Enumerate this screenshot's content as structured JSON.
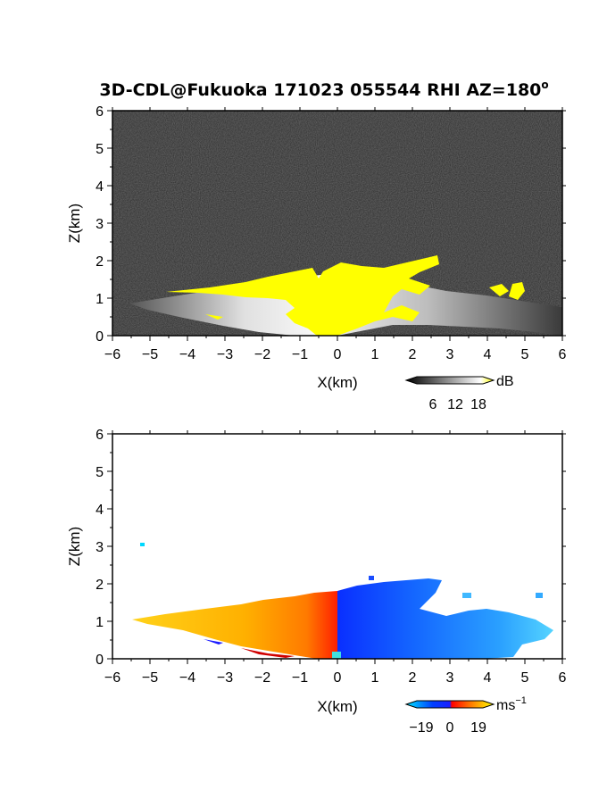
{
  "title": "3D-CDL@Fukuoka 171023 055544 RHI AZ=180",
  "title_superscript": "o",
  "chart_data": [
    {
      "type": "heatmap",
      "name": "signal-strength panel",
      "xlabel": "X(km)",
      "ylabel": "Z(km)",
      "xlim": [
        -6,
        6
      ],
      "ylim": [
        0,
        6
      ],
      "xticks": [
        "−6",
        "−5",
        "−4",
        "−3",
        "−2",
        "−1",
        "0",
        "1",
        "2",
        "3",
        "4",
        "5",
        "6"
      ],
      "yticks": [
        "0",
        "1",
        "2",
        "3",
        "4",
        "5",
        "6"
      ],
      "colorbar": {
        "unit": "dB",
        "ticks": [
          "6",
          "12",
          "18"
        ],
        "colors": [
          "#000000",
          "#ffffff",
          "#ffff00"
        ]
      },
      "background": "noise (dark gray)",
      "colors": {
        "background": "#2a2a2a",
        "saturated": "#ffff00"
      }
    },
    {
      "type": "heatmap",
      "name": "doppler-velocity panel",
      "xlabel": "X(km)",
      "ylabel": "Z(km)",
      "xlim": [
        -6,
        6
      ],
      "ylim": [
        0,
        6
      ],
      "xticks": [
        "−6",
        "−5",
        "−4",
        "−3",
        "−2",
        "−1",
        "0",
        "1",
        "2",
        "3",
        "4",
        "5",
        "6"
      ],
      "yticks": [
        "0",
        "1",
        "2",
        "3",
        "4",
        "5",
        "6"
      ],
      "colorbar": {
        "unit": "ms",
        "unit_superscript": "−1",
        "ticks": [
          "−19",
          "0",
          "19"
        ],
        "colors": [
          "#00e6ff",
          "#0040ff",
          "#ff0000",
          "#ffff00"
        ]
      },
      "colors": {
        "negative": "#1e6fff",
        "positive": "#ff9a00",
        "near_zero": "#ff2a00"
      }
    }
  ]
}
